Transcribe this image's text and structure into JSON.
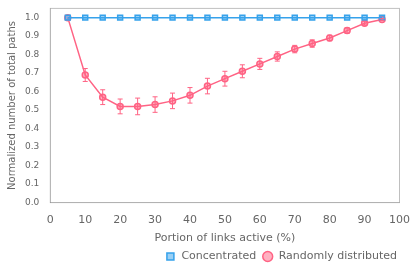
{
  "chart_data": {
    "type": "line",
    "xlabel": "Portion of links active (%)",
    "ylabel": "Normalized number of total paths",
    "x": [
      5,
      10,
      15,
      20,
      25,
      30,
      35,
      40,
      45,
      50,
      55,
      60,
      65,
      70,
      75,
      80,
      85,
      90,
      95
    ],
    "series": [
      {
        "name": "Concentrated",
        "marker": "square",
        "line_style": "solid",
        "values": [
          1.0,
          1.0,
          1.0,
          1.0,
          1.0,
          1.0,
          1.0,
          1.0,
          1.0,
          1.0,
          1.0,
          1.0,
          1.0,
          1.0,
          1.0,
          1.0,
          1.0,
          1.0,
          1.0
        ],
        "errors": [
          0.0,
          0.0,
          0.0,
          0.0,
          0.0,
          0.0,
          0.0,
          0.0,
          0.0,
          0.0,
          0.0,
          0.0,
          0.0,
          0.0,
          0.0,
          0.0,
          0.0,
          0.0,
          0.0
        ]
      },
      {
        "name": "Randomly distributed",
        "marker": "circle",
        "line_style": "solid",
        "values": [
          1.0,
          0.69,
          0.57,
          0.52,
          0.52,
          0.53,
          0.55,
          0.58,
          0.63,
          0.67,
          0.71,
          0.75,
          0.79,
          0.83,
          0.86,
          0.89,
          0.93,
          0.97,
          0.99
        ],
        "errors": [
          0.0,
          0.035,
          0.04,
          0.04,
          0.045,
          0.042,
          0.042,
          0.042,
          0.042,
          0.04,
          0.035,
          0.03,
          0.025,
          0.02,
          0.02,
          0.015,
          0.015,
          0.01,
          0.005
        ]
      }
    ],
    "xlim": [
      0,
      100
    ],
    "ylim": [
      0.0,
      1.05
    ],
    "xticks": [
      0,
      10,
      20,
      30,
      40,
      50,
      60,
      70,
      80,
      90,
      100
    ],
    "yticks": [
      {
        "value": 0.0,
        "label": "0.0"
      },
      0.1,
      0.2,
      0.3,
      0.4,
      0.5,
      0.6,
      0.7,
      0.8,
      0.9,
      {
        "value": 1.0,
        "label": "1.0"
      }
    ],
    "grid": false,
    "legend": "lower right"
  }
}
